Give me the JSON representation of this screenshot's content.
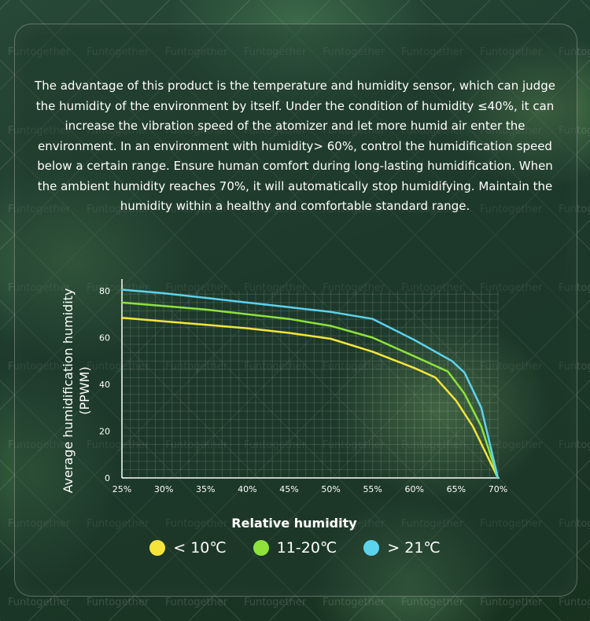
{
  "watermark": "Funtogether",
  "description": "The advantage of this product is the temperature and humidity sensor, which can judge the humidity of the environment by itself. Under the condition of humidity ≤40%, it can increase the vibration speed of the atomizer and let more humid air enter the environment. In an environment with humidity> 60%, control the humidification speed below a certain range. Ensure human comfort during long-lasting humidification. When the ambient humidity reaches 70%, it will automatically stop humidifying. Maintain the humidity within a healthy and comfortable standard range.",
  "chart_data": {
    "type": "line",
    "title": "",
    "xlabel": "Relative humidity",
    "ylabel": "Average humidification humidity (PPWM)",
    "x_ticks": [
      "25%",
      "30%",
      "35%",
      "40%",
      "45%",
      "50%",
      "55%",
      "60%",
      "65%",
      "70%"
    ],
    "y_ticks": [
      0,
      20,
      40,
      60,
      80
    ],
    "xlim": [
      25,
      70
    ],
    "ylim": [
      0,
      80
    ],
    "grid": true,
    "legend_position": "bottom",
    "series": [
      {
        "name": "< 10℃",
        "color": "#f5e53a",
        "x": [
          25,
          30,
          35,
          40,
          45,
          50,
          55,
          60,
          62.5,
          65,
          67,
          70
        ],
        "y": [
          68.5,
          67,
          65.5,
          64,
          62,
          59.5,
          54,
          47,
          43,
          33,
          22,
          0
        ]
      },
      {
        "name": "11-20℃",
        "color": "#8ee23a",
        "x": [
          25,
          30,
          35,
          40,
          45,
          50,
          55,
          60,
          64,
          66,
          68,
          70
        ],
        "y": [
          75,
          73.5,
          72,
          70,
          68,
          65,
          60,
          52,
          45.5,
          36,
          22,
          0
        ]
      },
      {
        "name": "> 21℃",
        "color": "#5cd3ee",
        "x": [
          25,
          30,
          35,
          40,
          45,
          50,
          55,
          60,
          64.5,
          66,
          68,
          70
        ],
        "y": [
          80.5,
          79,
          77,
          75,
          73,
          71,
          68,
          59,
          50,
          45,
          30,
          0
        ]
      }
    ]
  }
}
